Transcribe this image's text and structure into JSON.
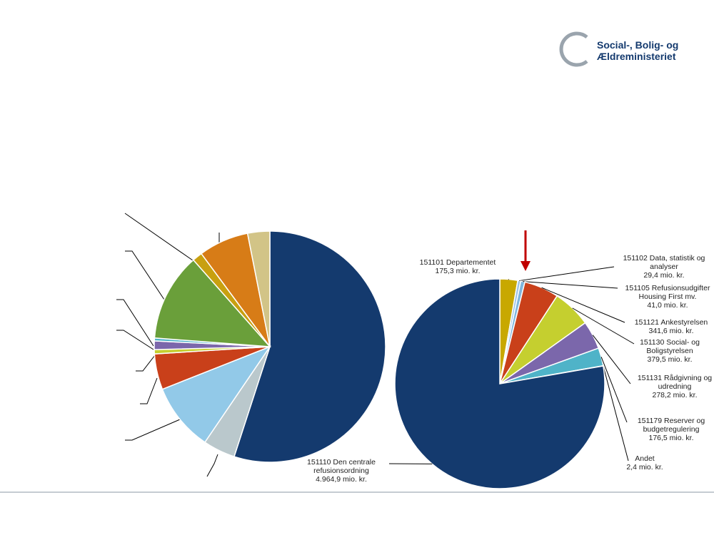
{
  "logo_text": "Social-, Bolig- og Ældreministeriet",
  "chart_data": [
    {
      "type": "pie",
      "categories": [
        null,
        null,
        null,
        null,
        null,
        null,
        null,
        null,
        null,
        null,
        null
      ],
      "values": [
        55,
        4.5,
        9.5,
        5,
        0.6,
        1.2,
        0.4,
        12.3,
        1.4,
        7,
        3.1
      ],
      "colors": [
        "#143a6e",
        "#bac8cc",
        "#92c9e8",
        "#c9401a",
        "#c5cf2f",
        "#7b67ab",
        "#4fb3c8",
        "#6a9f3a",
        "#c8a010",
        "#d77c17",
        "#d2c487"
      ]
    },
    {
      "type": "pie",
      "categories": [
        "151101 Departementet",
        "151102 Data, statistik og analyser",
        "151105 Refusionsudgifter Housing First mv.",
        "151121 Ankestyrelsen",
        "151130 Social- og Boligstyrelsen",
        "151131 Rådgivning og udredning",
        "151179 Reserver og budgetregulering",
        "Andet",
        "151110 Den centrale refusionsordning"
      ],
      "values": [
        175.3,
        29.4,
        41.0,
        341.6,
        379.5,
        278.2,
        176.5,
        2.4,
        4964.9
      ],
      "value_labels": [
        "175,3 mio. kr.",
        "29,4 mio. kr.",
        "41,0 mio. kr.",
        "341,6 mio. kr.",
        "379,5 mio. kr.",
        "278,2 mio. kr.",
        "176,5 mio. kr.",
        "2,4 mio. kr.",
        "4.964,9 mio. kr."
      ],
      "colors": [
        "#c8a800",
        "#9dc3e6",
        "#7fb6dd",
        "#c9401a",
        "#c5cf2f",
        "#7b67ab",
        "#4fb3c8",
        "#888888",
        "#143a6e"
      ]
    }
  ]
}
